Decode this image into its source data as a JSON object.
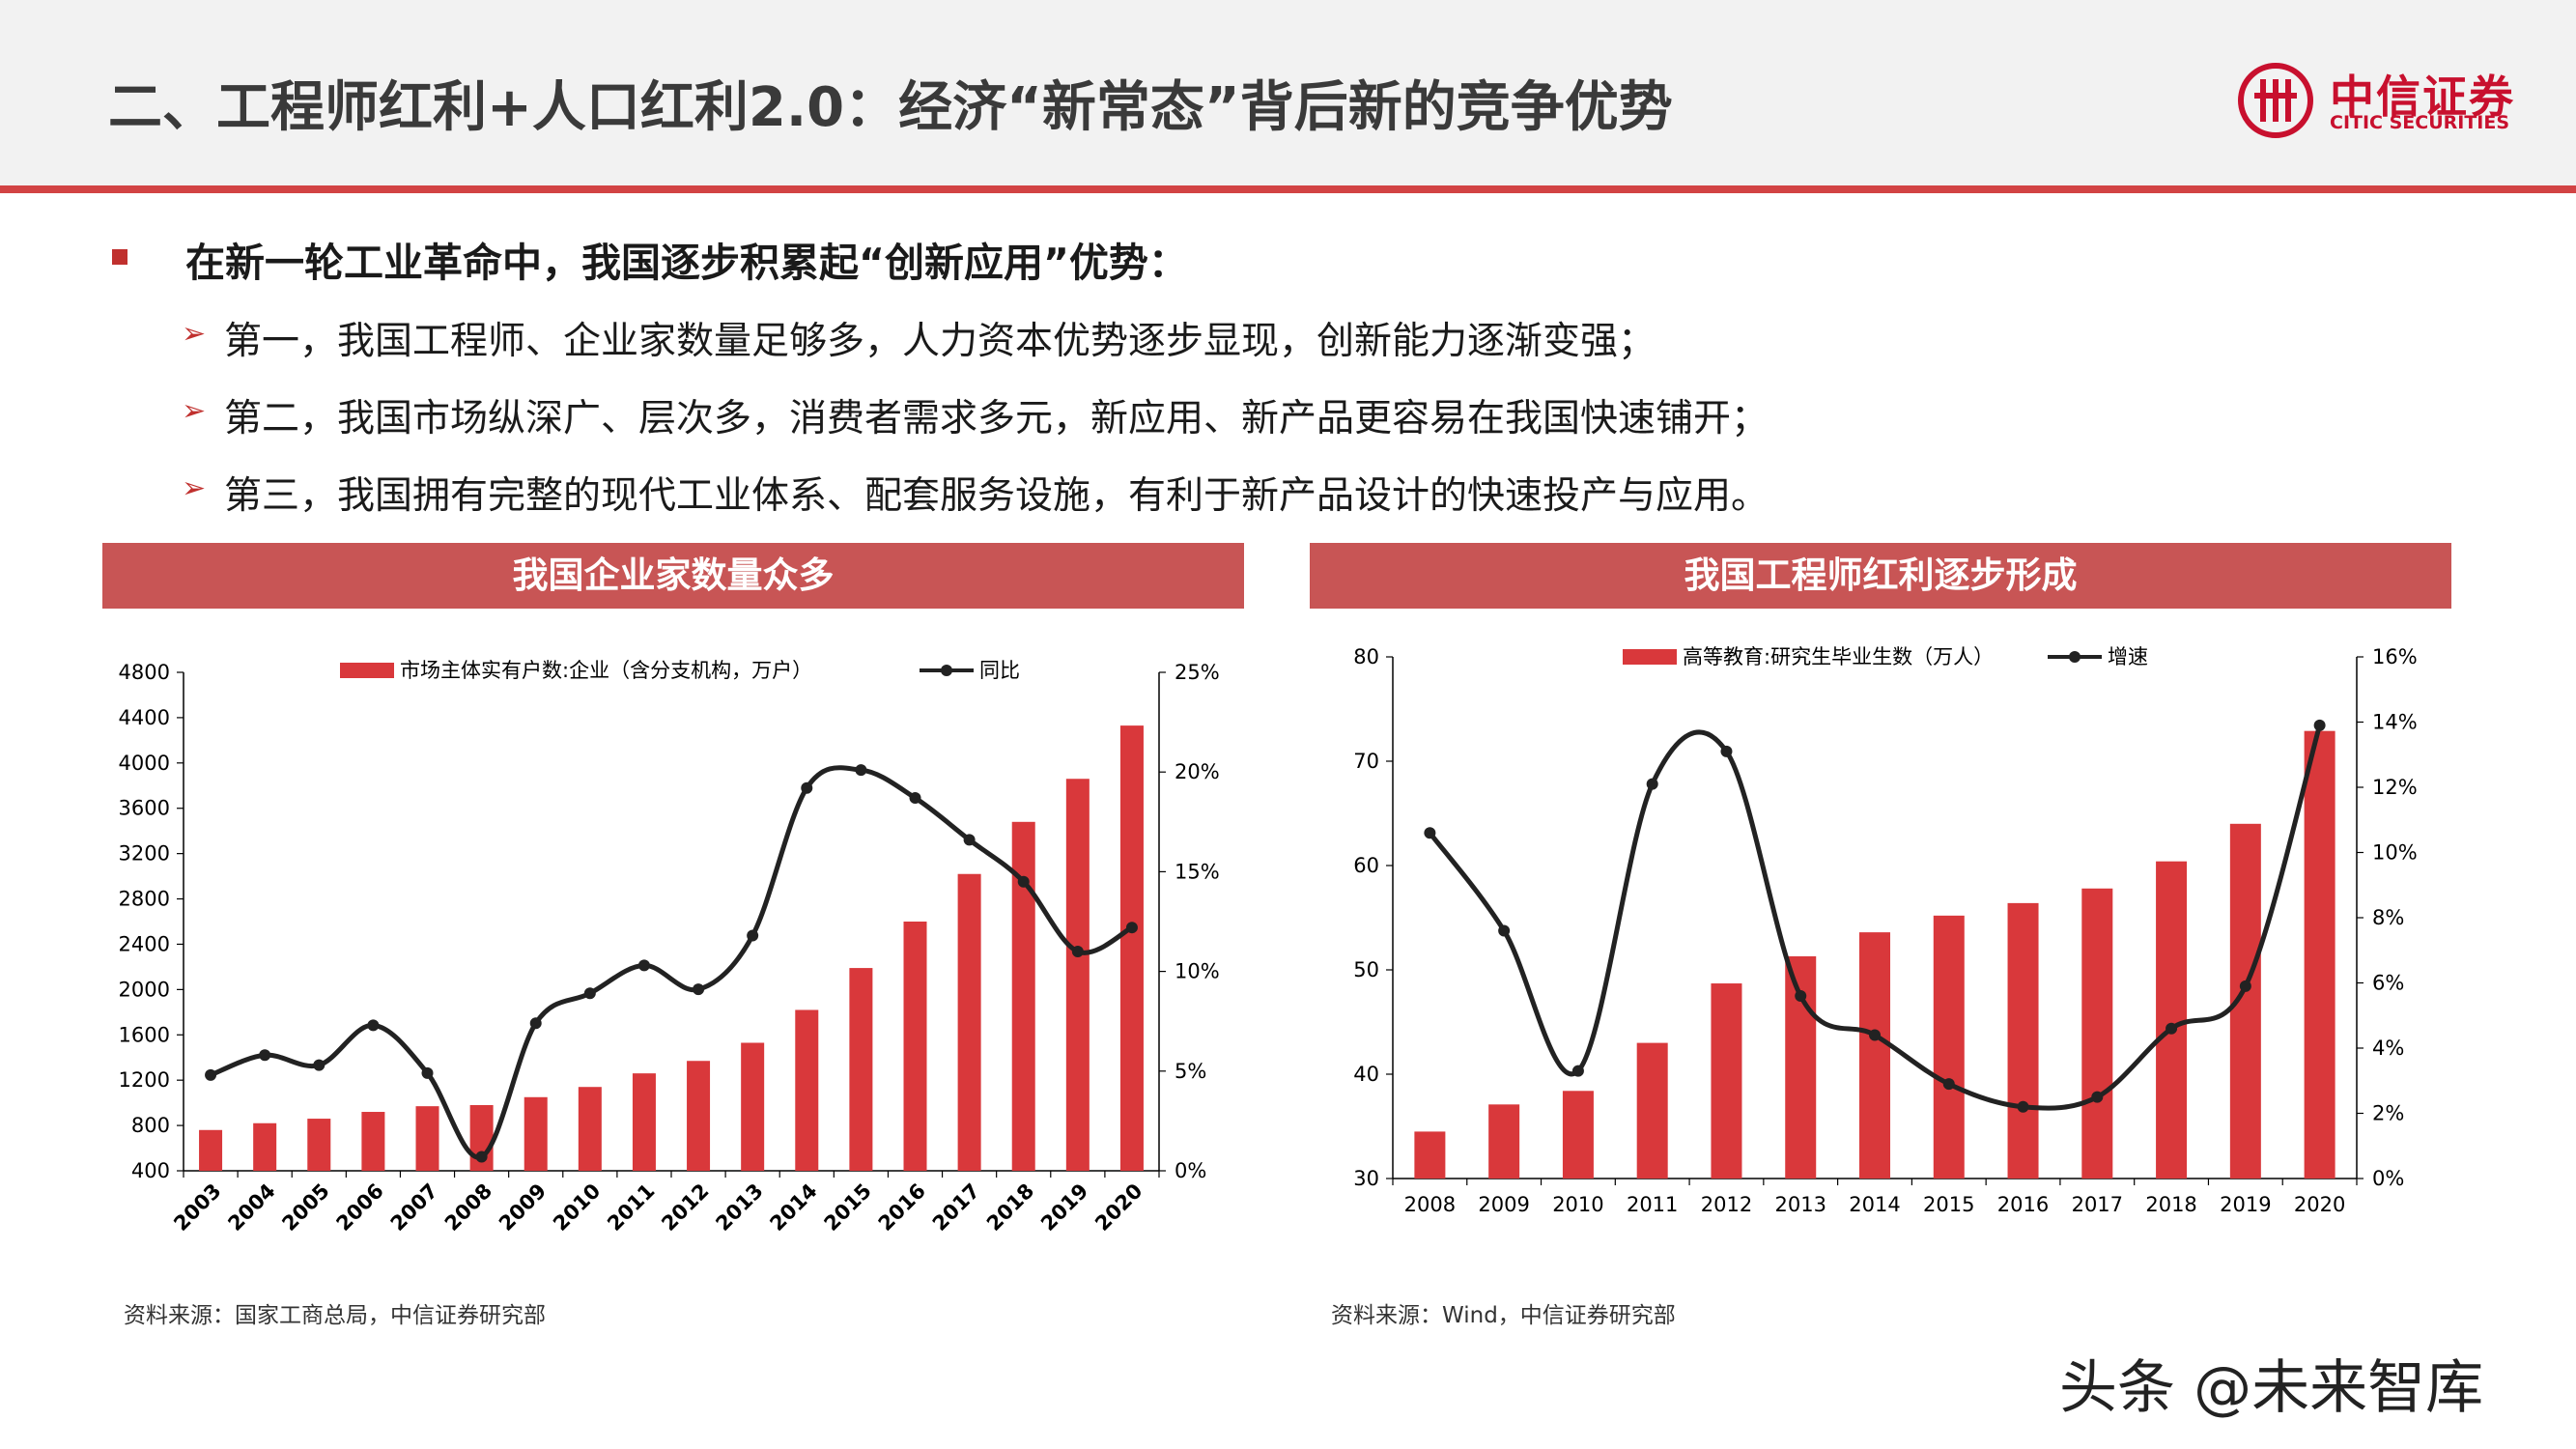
{
  "header": {
    "title": "二、工程师红利+人口红利2.0：经济“新常态”背后新的竞争优势",
    "logo_cn": "中信证券",
    "logo_en": "CITIC SECURITIES"
  },
  "content": {
    "main_point": "在新一轮工业革命中，我国逐步积累起“创新应用”优势：",
    "sub_points": [
      "第一，我国工程师、企业家数量足够多，人力资本优势逐步显现，创新能力逐渐变强；",
      "第二，我国市场纵深广、层次多，消费者需求多元，新应用、新产品更容易在我国快速铺开；",
      "第三，我国拥有完整的现代工业体系、配套服务设施，有利于新产品设计的快速投产与应用。"
    ]
  },
  "panels": [
    {
      "banner": "我国企业家数量众多",
      "source": "资料来源：国家工商总局，中信证券研究部"
    },
    {
      "banner": "我国工程师红利逐步形成",
      "source": "资料来源：Wind，中信证券研究部"
    }
  ],
  "watermark": "头条 @未来智库",
  "colors": {
    "accent": "#d24344",
    "bar": "#d9383b",
    "line": "#222222",
    "banner": "#c85555"
  },
  "chart_data": [
    {
      "type": "bar",
      "title": "我国企业家数量众多",
      "categories": [
        "2003",
        "2004",
        "2005",
        "2006",
        "2007",
        "2008",
        "2009",
        "2010",
        "2011",
        "2012",
        "2013",
        "2014",
        "2015",
        "2016",
        "2017",
        "2018",
        "2019",
        "2020"
      ],
      "series": [
        {
          "name": "市场主体实有户数:企业（含分支机构，万户）",
          "type": "bar",
          "axis": "left",
          "values": [
            760,
            820,
            860,
            920,
            970,
            980,
            1050,
            1140,
            1260,
            1370,
            1530,
            1820,
            2190,
            2600,
            3020,
            3480,
            3860,
            4330
          ]
        },
        {
          "name": "同比",
          "type": "line",
          "axis": "right",
          "values": [
            4.8,
            5.8,
            5.3,
            7.3,
            4.9,
            0.7,
            7.4,
            8.9,
            10.3,
            9.1,
            11.8,
            19.2,
            20.1,
            18.7,
            16.6,
            14.5,
            11.0,
            12.2
          ]
        }
      ],
      "y_left": {
        "min": 400,
        "max": 4800,
        "ticks": [
          "4800",
          "4400",
          "4000",
          "3600",
          "3200",
          "2800",
          "2400",
          "2000",
          "1600",
          "1200",
          "800",
          "400"
        ]
      },
      "y_right": {
        "min": 0,
        "max": 25,
        "ticks": [
          "25%",
          "20%",
          "15%",
          "10%",
          "5%",
          "0%"
        ]
      },
      "grid": false,
      "legend_position": "top"
    },
    {
      "type": "bar",
      "title": "我国工程师红利逐步形成",
      "categories": [
        "2008",
        "2009",
        "2010",
        "2011",
        "2012",
        "2013",
        "2014",
        "2015",
        "2016",
        "2017",
        "2018",
        "2019",
        "2020"
      ],
      "series": [
        {
          "name": "高等教育:研究生毕业生数（万人）",
          "type": "bar",
          "axis": "left",
          "values": [
            34.5,
            37.1,
            38.4,
            43.0,
            48.7,
            51.3,
            53.6,
            55.2,
            56.4,
            57.8,
            60.4,
            64.0,
            72.9
          ]
        },
        {
          "name": "增速",
          "type": "line",
          "axis": "right",
          "values": [
            10.6,
            7.6,
            3.3,
            12.1,
            13.1,
            5.6,
            4.4,
            2.9,
            2.2,
            2.5,
            4.6,
            5.9,
            13.9
          ]
        }
      ],
      "y_left": {
        "min": 30,
        "max": 80,
        "ticks": [
          "80",
          "70",
          "60",
          "50",
          "40",
          "30"
        ]
      },
      "y_right": {
        "min": 0,
        "max": 16,
        "ticks": [
          "16%",
          "14%",
          "12%",
          "10%",
          "8%",
          "6%",
          "4%",
          "2%",
          "0%"
        ]
      },
      "grid": false,
      "legend_position": "top"
    }
  ]
}
